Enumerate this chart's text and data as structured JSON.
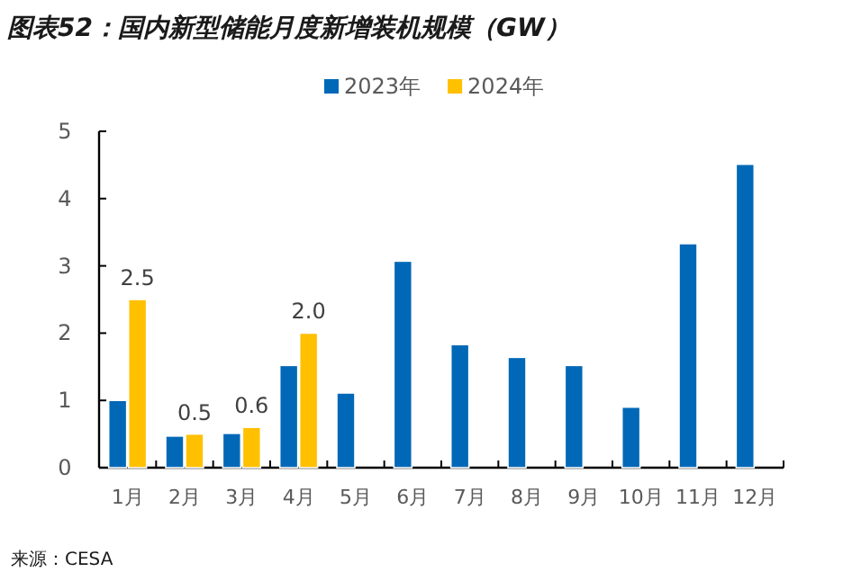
{
  "chart_data": {
    "type": "bar",
    "title": "图表52：国内新型储能月度新增装机规模（GW）",
    "categories": [
      "1月",
      "2月",
      "3月",
      "4月",
      "5月",
      "6月",
      "7月",
      "8月",
      "9月",
      "10月",
      "11月",
      "12月"
    ],
    "series": [
      {
        "name": "2023年",
        "color": "#0068b7",
        "values": [
          1.0,
          0.47,
          0.51,
          1.52,
          1.11,
          3.07,
          1.83,
          1.64,
          1.52,
          0.9,
          3.33,
          4.51
        ]
      },
      {
        "name": "2024年",
        "color": "#ffc000",
        "values": [
          2.5,
          0.5,
          0.6,
          2.0,
          null,
          null,
          null,
          null,
          null,
          null,
          null,
          null
        ],
        "value_labels": [
          "2.5",
          "0.5",
          "0.6",
          "2.0",
          null,
          null,
          null,
          null,
          null,
          null,
          null,
          null
        ]
      }
    ],
    "ylim": [
      0,
      5
    ],
    "yticks": [
      0,
      1,
      2,
      3,
      4,
      5
    ],
    "grid": false,
    "legend": "top",
    "annotations": [
      "来源：CESA"
    ]
  }
}
